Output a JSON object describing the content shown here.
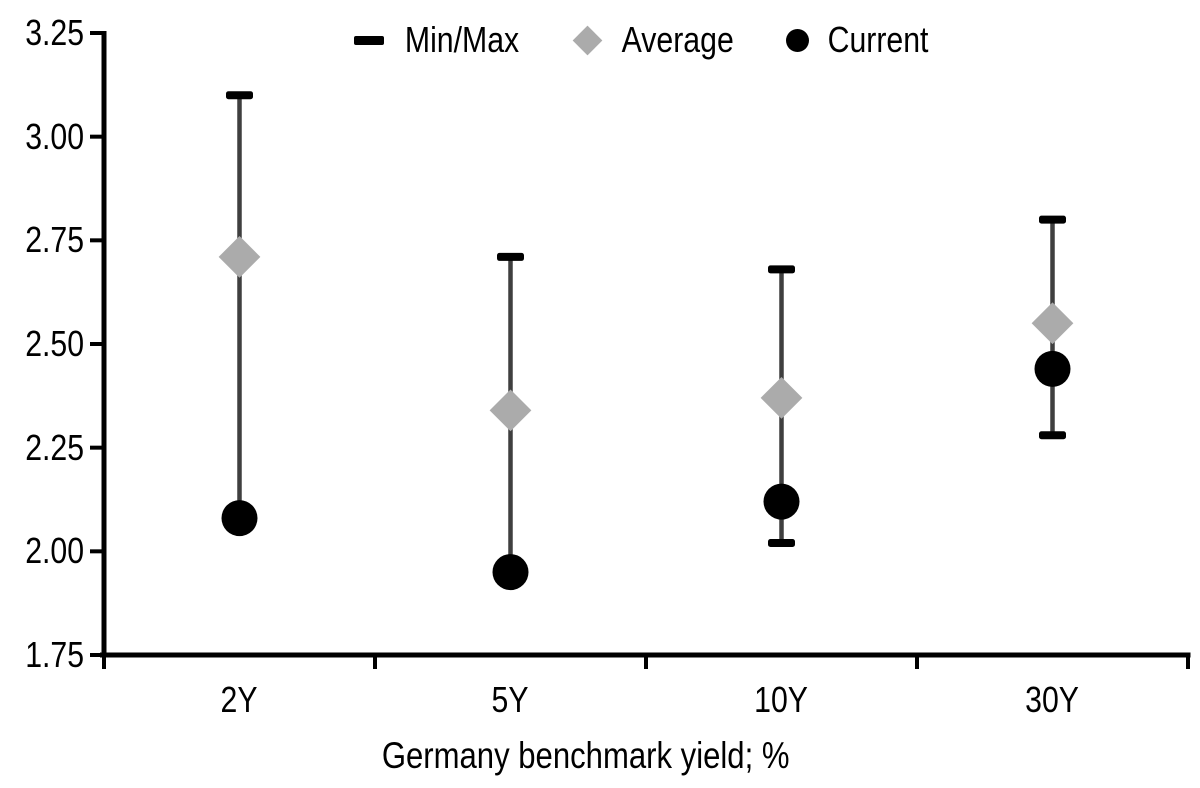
{
  "legend": {
    "items": [
      {
        "label": "Min/Max",
        "marker": "black-dash"
      },
      {
        "label": "Average",
        "marker": "gray-diamond"
      },
      {
        "label": "Current",
        "marker": "black-circle"
      }
    ]
  },
  "chart_data": {
    "type": "scatter",
    "subtype": "min-max-range-markers",
    "title": "",
    "xlabel": "Germany benchmark yield; %",
    "ylabel": "",
    "categories": [
      "2Y",
      "5Y",
      "10Y",
      "30Y"
    ],
    "series": [
      {
        "name": "Min/Max",
        "role": "range",
        "max": [
          3.1,
          2.71,
          2.68,
          2.8
        ],
        "min": [
          2.08,
          1.95,
          2.02,
          2.28
        ]
      },
      {
        "name": "Average",
        "role": "diamond",
        "values": [
          2.71,
          2.34,
          2.37,
          2.55
        ]
      },
      {
        "name": "Current",
        "role": "circle",
        "values": [
          2.08,
          1.95,
          2.12,
          2.44
        ]
      }
    ],
    "ylim": [
      1.75,
      3.25
    ],
    "ytick_step": 0.25,
    "ytick_labels": [
      "3.25",
      "3.00",
      "2.75",
      "2.50",
      "2.25",
      "2.00",
      "1.75"
    ],
    "grid": false,
    "legend_position": "top-center",
    "colors": {
      "axis": "#000000",
      "text": "#000000",
      "range_line": "#3F3F3F",
      "minmax_cap": "#000000",
      "average_gray": "#ABABAB",
      "current_black": "#000000",
      "background": "#FFFFFF"
    }
  }
}
